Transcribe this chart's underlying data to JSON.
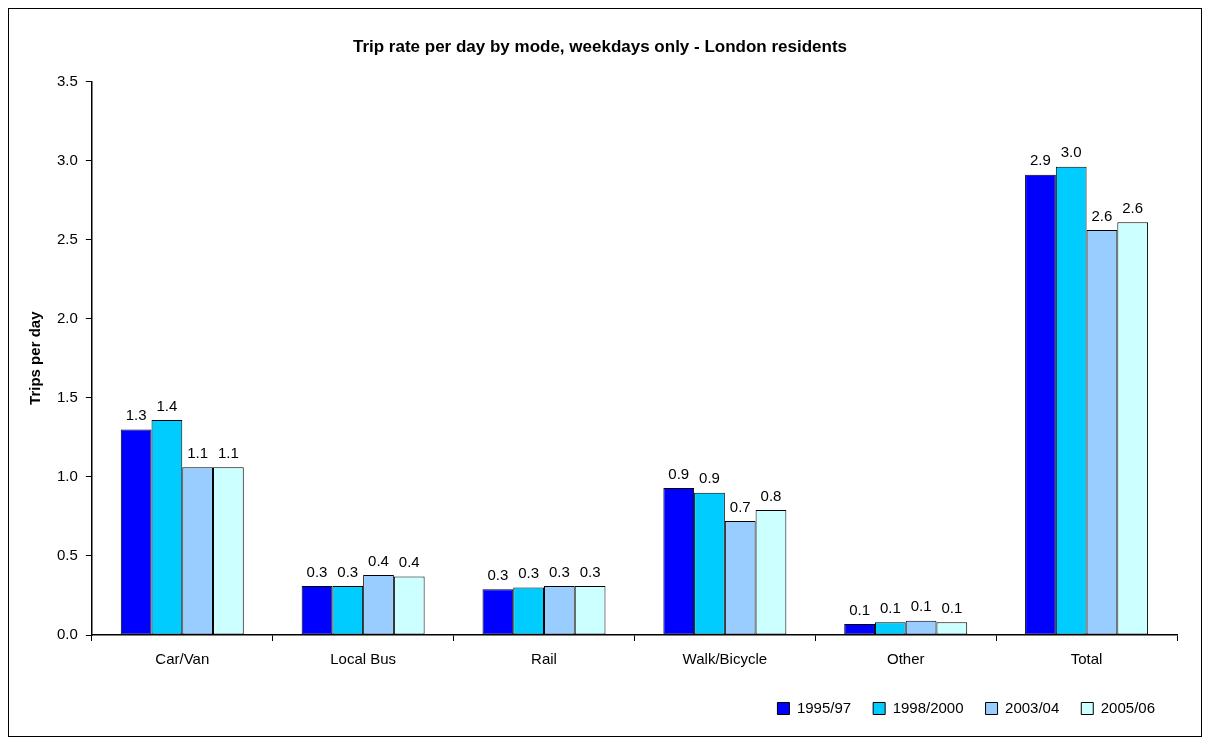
{
  "chart_data": {
    "type": "bar",
    "title": "Trip rate per day by mode, weekdays only - London residents",
    "ylabel": "Trips per day",
    "categories": [
      "Car/Van",
      "Local Bus",
      "Rail",
      "Walk/Bicycle",
      "Other",
      "Total"
    ],
    "series": [
      {
        "name": "1995/97",
        "color": "#0000ff",
        "values": [
          1.3,
          0.31,
          0.29,
          0.93,
          0.07,
          2.91
        ],
        "value_labels": [
          "1.3",
          "0.3",
          "0.3",
          "0.9",
          "0.1",
          "2.9"
        ]
      },
      {
        "name": "1998/2000",
        "color": "#00ccff",
        "values": [
          1.36,
          0.31,
          0.3,
          0.9,
          0.08,
          2.96
        ],
        "value_labels": [
          "1.4",
          "0.3",
          "0.3",
          "0.9",
          "0.1",
          "3.0"
        ]
      },
      {
        "name": "2003/04",
        "color": "#99ccff",
        "values": [
          1.06,
          0.38,
          0.31,
          0.72,
          0.09,
          2.56
        ],
        "value_labels": [
          "1.1",
          "0.4",
          "0.3",
          "0.7",
          "0.1",
          "2.6"
        ]
      },
      {
        "name": "2005/06",
        "color": "#ccffff",
        "values": [
          1.06,
          0.37,
          0.31,
          0.79,
          0.08,
          2.61
        ],
        "value_labels": [
          "1.1",
          "0.4",
          "0.3",
          "0.8",
          "0.1",
          "2.6"
        ]
      }
    ],
    "ylim": [
      0,
      3.5
    ],
    "yticks": [
      {
        "value": 0,
        "label": "0.0"
      },
      {
        "value": 0.5,
        "label": "0.5"
      },
      {
        "value": 1,
        "label": "1.0"
      },
      {
        "value": 1.5,
        "label": "1.5"
      },
      {
        "value": 2,
        "label": "2.0"
      },
      {
        "value": 2.5,
        "label": "2.5"
      },
      {
        "value": 3,
        "label": "3.0"
      },
      {
        "value": 3.5,
        "label": "3.5"
      }
    ],
    "grid": false,
    "legend": "bottom right"
  }
}
